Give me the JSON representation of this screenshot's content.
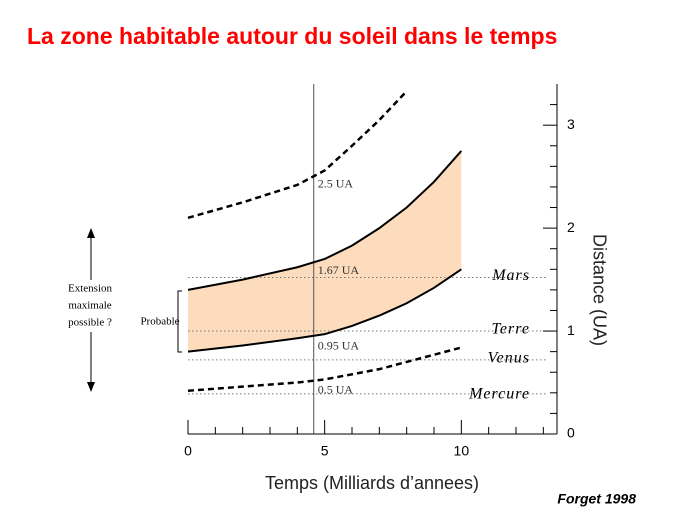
{
  "chart_data": {
    "type": "line",
    "title": "La zone habitable autour du soleil dans le temps",
    "xlabel": "Temps  (Milliards d’annees)",
    "ylabel": "Distance (UA)",
    "source": "Forget 1998",
    "xlim": [
      0,
      13.5
    ],
    "xticks": [
      0,
      5,
      10
    ],
    "xminorticks": [
      1,
      2,
      3,
      4,
      6,
      7,
      8,
      9,
      11,
      12,
      13
    ],
    "ylim": [
      0,
      3.4
    ],
    "yticks": [
      0,
      1,
      2,
      3
    ],
    "yminorticks": [
      0.2,
      0.4,
      0.6,
      0.8,
      1.2,
      1.4,
      1.6,
      1.8,
      2.2,
      2.4,
      2.6,
      2.8,
      3.2
    ],
    "x": [
      0,
      2,
      4,
      5,
      6,
      7,
      8,
      9,
      10
    ],
    "zone": {
      "color": "#fcdcbc",
      "line_color": "#000000",
      "upper": [
        1.4,
        1.5,
        1.62,
        1.7,
        1.83,
        2.0,
        2.2,
        2.45,
        2.75
      ],
      "lower": [
        0.8,
        0.86,
        0.93,
        0.97,
        1.05,
        1.15,
        1.27,
        1.42,
        1.6
      ]
    },
    "series": [
      {
        "color": "#000000",
        "style": "dashed",
        "values": [
          2.1,
          2.25,
          2.42,
          2.56,
          2.8,
          3.05,
          3.33,
          null,
          null
        ]
      },
      {
        "color": "#000000",
        "style": "dashed",
        "values": [
          0.42,
          0.46,
          0.5,
          0.53,
          0.58,
          0.63,
          0.7,
          0.77,
          0.84
        ]
      }
    ],
    "vline": 4.6,
    "annotations": [
      {
        "text": "2.5 UA",
        "value": 2.42
      },
      {
        "text": "1.67 UA",
        "value": 1.58
      },
      {
        "text": "0.95 UA",
        "value": 0.85
      },
      {
        "text": "0.5 UA",
        "value": 0.42
      }
    ],
    "reference_lines": [
      {
        "label": "Mars",
        "value": 1.52
      },
      {
        "label": "Terre",
        "value": 1.0
      },
      {
        "label": "Venus",
        "value": 0.72
      },
      {
        "label": "Mercure",
        "value": 0.39
      }
    ],
    "extension_label": [
      "Extension",
      "maximale",
      "possible ?"
    ],
    "probable_label": "Probable"
  }
}
